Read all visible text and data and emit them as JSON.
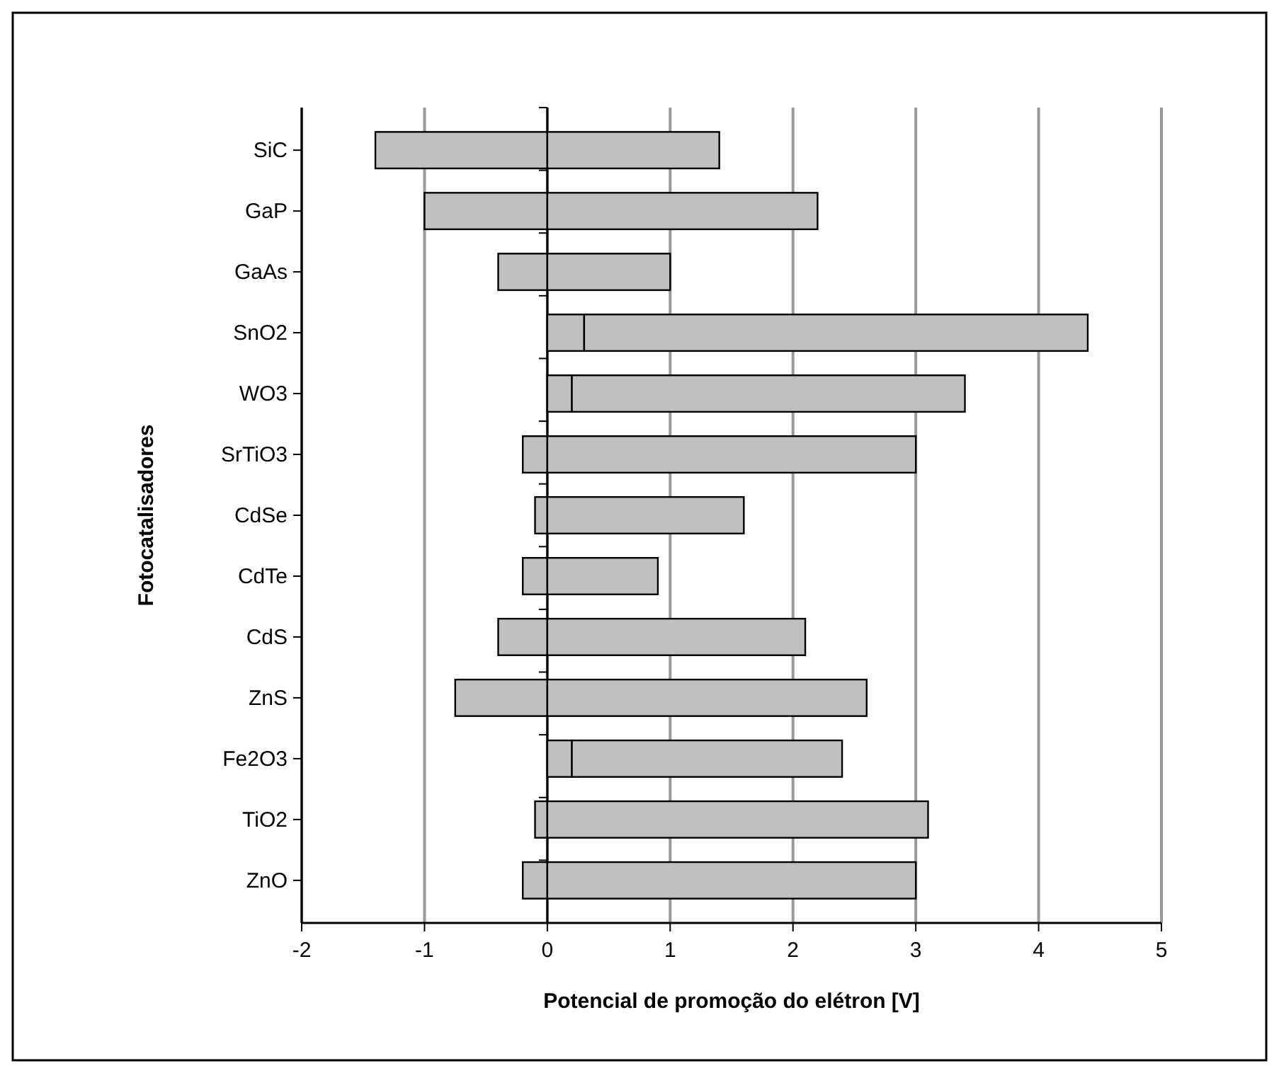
{
  "chart_data": {
    "type": "bar",
    "orientation": "horizontal",
    "stacked": true,
    "categories": [
      "SiC",
      "GaP",
      "GaAs",
      "SnO2",
      "WO3",
      "SrTiO3",
      "CdSe",
      "CdTe",
      "CdS",
      "ZnS",
      "Fe2O3",
      "TiO2",
      "ZnO"
    ],
    "series": [
      {
        "color": "#c0c0c0",
        "values": [
          -1.4,
          -1.0,
          -0.4,
          0.3,
          0.2,
          -0.2,
          -0.1,
          -0.2,
          -0.4,
          -0.75,
          0.2,
          -0.1,
          -0.2
        ]
      },
      {
        "color": "#c0c0c0",
        "values": [
          1.4,
          2.2,
          1.0,
          4.1,
          3.2,
          3.0,
          1.6,
          0.9,
          2.1,
          2.6,
          2.2,
          3.1,
          3.0
        ]
      }
    ],
    "xlim": [
      -2,
      5
    ],
    "xticks": [
      -2,
      -1,
      0,
      1,
      2,
      3,
      4,
      5
    ],
    "xlabel": "Potencial de promoção do elétron [V]",
    "ylabel": "Fotocatalisadores",
    "grid": "x"
  }
}
